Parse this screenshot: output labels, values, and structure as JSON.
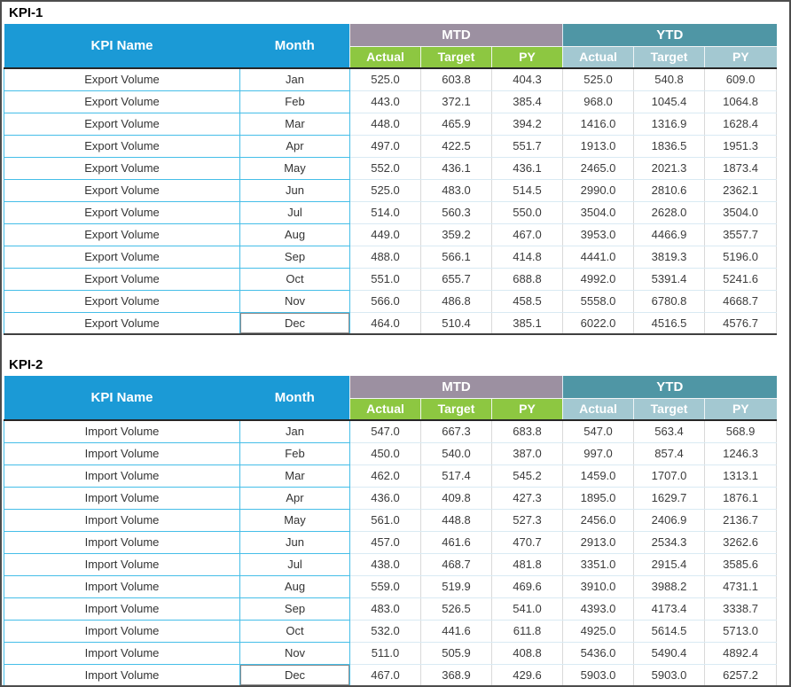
{
  "colors": {
    "header_blue": "#1b9ad6",
    "mtd_group_mauve": "#9c90a1",
    "ytd_group_teal": "#4f96a5",
    "mtd_sub_green": "#8dc741",
    "ytd_sub_lightblue": "#a3c8d1",
    "cell_border_cyan": "#45bee8",
    "frame_border": "#4d4d4d"
  },
  "tables": [
    {
      "title": "KPI-1",
      "header": {
        "kpi_name": "KPI Name",
        "month": "Month",
        "mtd": "MTD",
        "ytd": "YTD",
        "sub": [
          "Actual",
          "Target",
          "PY",
          "Actual",
          "Target",
          "PY"
        ]
      },
      "rows": [
        {
          "kpi": "Export Volume",
          "month": "Jan",
          "values": [
            "525.0",
            "603.8",
            "404.3",
            "525.0",
            "540.8",
            "609.0"
          ]
        },
        {
          "kpi": "Export Volume",
          "month": "Feb",
          "values": [
            "443.0",
            "372.1",
            "385.4",
            "968.0",
            "1045.4",
            "1064.8"
          ]
        },
        {
          "kpi": "Export Volume",
          "month": "Mar",
          "values": [
            "448.0",
            "465.9",
            "394.2",
            "1416.0",
            "1316.9",
            "1628.4"
          ]
        },
        {
          "kpi": "Export Volume",
          "month": "Apr",
          "values": [
            "497.0",
            "422.5",
            "551.7",
            "1913.0",
            "1836.5",
            "1951.3"
          ]
        },
        {
          "kpi": "Export Volume",
          "month": "May",
          "values": [
            "552.0",
            "436.1",
            "436.1",
            "2465.0",
            "2021.3",
            "1873.4"
          ]
        },
        {
          "kpi": "Export Volume",
          "month": "Jun",
          "values": [
            "525.0",
            "483.0",
            "514.5",
            "2990.0",
            "2810.6",
            "2362.1"
          ]
        },
        {
          "kpi": "Export Volume",
          "month": "Jul",
          "values": [
            "514.0",
            "560.3",
            "550.0",
            "3504.0",
            "2628.0",
            "3504.0"
          ]
        },
        {
          "kpi": "Export Volume",
          "month": "Aug",
          "values": [
            "449.0",
            "359.2",
            "467.0",
            "3953.0",
            "4466.9",
            "3557.7"
          ]
        },
        {
          "kpi": "Export Volume",
          "month": "Sep",
          "values": [
            "488.0",
            "566.1",
            "414.8",
            "4441.0",
            "3819.3",
            "5196.0"
          ]
        },
        {
          "kpi": "Export Volume",
          "month": "Oct",
          "values": [
            "551.0",
            "655.7",
            "688.8",
            "4992.0",
            "5391.4",
            "5241.6"
          ]
        },
        {
          "kpi": "Export Volume",
          "month": "Nov",
          "values": [
            "566.0",
            "486.8",
            "458.5",
            "5558.0",
            "6780.8",
            "4668.7"
          ]
        },
        {
          "kpi": "Export Volume",
          "month": "Dec",
          "values": [
            "464.0",
            "510.4",
            "385.1",
            "6022.0",
            "4516.5",
            "4576.7"
          ]
        }
      ]
    },
    {
      "title": "KPI-2",
      "header": {
        "kpi_name": "KPI Name",
        "month": "Month",
        "mtd": "MTD",
        "ytd": "YTD",
        "sub": [
          "Actual",
          "Target",
          "PY",
          "Actual",
          "Target",
          "PY"
        ]
      },
      "rows": [
        {
          "kpi": "Import Volume",
          "month": "Jan",
          "values": [
            "547.0",
            "667.3",
            "683.8",
            "547.0",
            "563.4",
            "568.9"
          ]
        },
        {
          "kpi": "Import Volume",
          "month": "Feb",
          "values": [
            "450.0",
            "540.0",
            "387.0",
            "997.0",
            "857.4",
            "1246.3"
          ]
        },
        {
          "kpi": "Import Volume",
          "month": "Mar",
          "values": [
            "462.0",
            "517.4",
            "545.2",
            "1459.0",
            "1707.0",
            "1313.1"
          ]
        },
        {
          "kpi": "Import Volume",
          "month": "Apr",
          "values": [
            "436.0",
            "409.8",
            "427.3",
            "1895.0",
            "1629.7",
            "1876.1"
          ]
        },
        {
          "kpi": "Import Volume",
          "month": "May",
          "values": [
            "561.0",
            "448.8",
            "527.3",
            "2456.0",
            "2406.9",
            "2136.7"
          ]
        },
        {
          "kpi": "Import Volume",
          "month": "Jun",
          "values": [
            "457.0",
            "461.6",
            "470.7",
            "2913.0",
            "2534.3",
            "3262.6"
          ]
        },
        {
          "kpi": "Import Volume",
          "month": "Jul",
          "values": [
            "438.0",
            "468.7",
            "481.8",
            "3351.0",
            "2915.4",
            "3585.6"
          ]
        },
        {
          "kpi": "Import Volume",
          "month": "Aug",
          "values": [
            "559.0",
            "519.9",
            "469.6",
            "3910.0",
            "3988.2",
            "4731.1"
          ]
        },
        {
          "kpi": "Import Volume",
          "month": "Sep",
          "values": [
            "483.0",
            "526.5",
            "541.0",
            "4393.0",
            "4173.4",
            "3338.7"
          ]
        },
        {
          "kpi": "Import Volume",
          "month": "Oct",
          "values": [
            "532.0",
            "441.6",
            "611.8",
            "4925.0",
            "5614.5",
            "5713.0"
          ]
        },
        {
          "kpi": "Import Volume",
          "month": "Nov",
          "values": [
            "511.0",
            "505.9",
            "408.8",
            "5436.0",
            "5490.4",
            "4892.4"
          ]
        },
        {
          "kpi": "Import Volume",
          "month": "Dec",
          "values": [
            "467.0",
            "368.9",
            "429.6",
            "5903.0",
            "5903.0",
            "6257.2"
          ]
        }
      ]
    }
  ]
}
